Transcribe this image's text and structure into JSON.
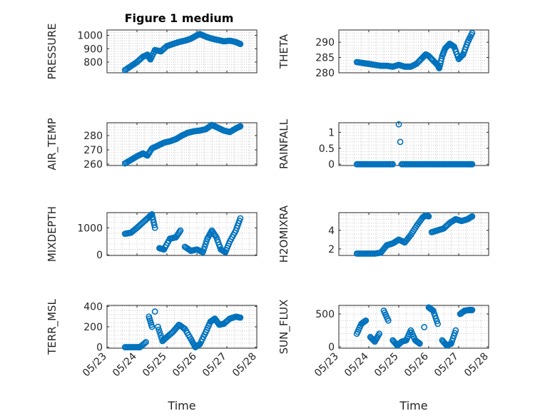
{
  "figure": {
    "title": "Figure 1 medium"
  },
  "chart_data": [
    {
      "type": "scatter",
      "ylabel": "PRESSURE",
      "xlabel": "",
      "yticks": [
        "800",
        "900",
        "1000"
      ],
      "ytick_values": [
        800,
        900,
        1000
      ],
      "ylim": [
        720,
        1040
      ],
      "grid": true,
      "x": [
        23.6,
        23.8,
        24.0,
        24.2,
        24.35,
        24.45,
        24.6,
        24.8,
        25.0,
        25.2,
        25.4,
        25.6,
        25.8,
        26.0,
        26.1,
        26.3,
        26.5,
        26.7,
        26.9,
        27.1,
        27.3,
        27.45
      ],
      "values": [
        740,
        770,
        800,
        840,
        855,
        820,
        890,
        880,
        920,
        935,
        950,
        960,
        975,
        1000,
        1010,
        990,
        975,
        965,
        955,
        960,
        950,
        935
      ]
    },
    {
      "type": "scatter",
      "ylabel": "THETA",
      "xlabel": "",
      "yticks": [
        "280",
        "285",
        "290"
      ],
      "ytick_values": [
        280,
        285,
        290
      ],
      "ylim": [
        280,
        294
      ],
      "grid": true,
      "x": [
        23.6,
        23.8,
        24.0,
        24.2,
        24.4,
        24.6,
        24.8,
        25.0,
        25.2,
        25.4,
        25.6,
        25.8,
        25.9,
        26.0,
        26.2,
        26.3,
        26.35,
        26.45,
        26.55,
        26.7,
        26.85,
        27.0,
        27.15,
        27.3,
        27.45
      ],
      "values": [
        283.5,
        283.2,
        282.9,
        282.6,
        282.3,
        282.3,
        282.0,
        282.6,
        282.0,
        282.0,
        283.0,
        285.0,
        286.0,
        285.5,
        283.5,
        282.5,
        281.5,
        285.5,
        288.0,
        289.5,
        288.5,
        284.5,
        286.0,
        290.0,
        293.0
      ]
    },
    {
      "type": "scatter",
      "ylabel": "AIR_TEMP",
      "xlabel": "",
      "yticks": [
        "260",
        "270",
        "280"
      ],
      "ytick_values": [
        260,
        270,
        280
      ],
      "ylim": [
        259,
        289
      ],
      "grid": true,
      "x": [
        23.6,
        23.8,
        24.0,
        24.2,
        24.35,
        24.5,
        24.7,
        24.9,
        25.1,
        25.3,
        25.5,
        25.7,
        25.9,
        26.1,
        26.3,
        26.5,
        26.7,
        26.9,
        27.1,
        27.3,
        27.45
      ],
      "values": [
        260.5,
        263.0,
        265.5,
        267.5,
        266.0,
        271.0,
        273.0,
        275.0,
        276.0,
        277.5,
        280.0,
        282.0,
        283.0,
        283.5,
        284.5,
        287.5,
        285.5,
        283.5,
        282.5,
        285.0,
        286.5
      ]
    },
    {
      "type": "scatter",
      "ylabel": "RAINFALL",
      "xlabel": "",
      "yticks": [
        "0",
        "0.5",
        "1"
      ],
      "ytick_values": [
        0,
        0.5,
        1
      ],
      "ylim": [
        -0.04,
        1.3
      ],
      "grid": true,
      "x": [
        23.6,
        23.8,
        24.0,
        24.2,
        24.4,
        24.6,
        24.8,
        25.0,
        25.05,
        25.1,
        25.3,
        25.5,
        25.7,
        25.9,
        26.1,
        26.3,
        26.5,
        26.7,
        26.9,
        27.1,
        27.3,
        27.45
      ],
      "values": [
        0,
        0,
        0,
        0,
        0,
        0,
        0,
        1.25,
        0.7,
        0,
        0,
        0,
        0,
        0,
        0,
        0,
        0,
        0,
        0,
        0,
        0,
        0
      ]
    },
    {
      "type": "scatter",
      "ylabel": "MIXDEPTH",
      "xlabel": "",
      "yticks": [
        "0",
        "1000"
      ],
      "ytick_values": [
        0,
        1000
      ],
      "ylim": [
        -20,
        1560
      ],
      "grid": true,
      "x": [
        23.6,
        23.8,
        24.0,
        24.2,
        24.4,
        24.5,
        24.6,
        24.75,
        24.9,
        25.1,
        25.3,
        25.45,
        25.6,
        25.8,
        26.0,
        26.2,
        26.35,
        26.5,
        26.65,
        26.8,
        26.95,
        27.1,
        27.3,
        27.45
      ],
      "values": [
        780,
        820,
        1000,
        1200,
        1400,
        1500,
        1000,
        250,
        200,
        600,
        650,
        900,
        300,
        150,
        200,
        100,
        600,
        900,
        650,
        200,
        100,
        500,
        900,
        1350
      ]
    },
    {
      "type": "scatter",
      "ylabel": "H2OMIXRA",
      "xlabel": "",
      "yticks": [
        "2",
        "4"
      ],
      "ytick_values": [
        2,
        4
      ],
      "ylim": [
        1.3,
        5.9
      ],
      "grid": true,
      "x": [
        23.6,
        23.8,
        24.0,
        24.2,
        24.4,
        24.6,
        24.8,
        25.0,
        25.2,
        25.4,
        25.6,
        25.8,
        25.9,
        26.0,
        26.1,
        26.3,
        26.5,
        26.7,
        26.9,
        27.1,
        27.3,
        27.45
      ],
      "values": [
        1.5,
        1.5,
        1.5,
        1.5,
        1.6,
        2.4,
        2.6,
        3.0,
        2.7,
        3.5,
        4.5,
        5.4,
        5.6,
        5.5,
        3.8,
        4.0,
        4.2,
        4.8,
        5.2,
        5.0,
        5.2,
        5.5
      ]
    },
    {
      "type": "scatter",
      "ylabel": "TERR_MSL",
      "xlabel": "Time",
      "yticks": [
        "0",
        "200",
        "400"
      ],
      "ytick_values": [
        0,
        200,
        400
      ],
      "ylim": [
        -10,
        410
      ],
      "grid": true,
      "xticks": [
        "05/23",
        "05/24",
        "05/25",
        "05/26",
        "05/27",
        "05/28"
      ],
      "xtick_values": [
        23,
        24,
        25,
        26,
        27,
        28
      ],
      "xlim": [
        23,
        28
      ],
      "x": [
        23.6,
        23.8,
        24.0,
        24.1,
        24.3,
        24.4,
        24.5,
        24.6,
        24.7,
        24.85,
        25.0,
        25.2,
        25.4,
        25.6,
        25.8,
        25.95,
        26.1,
        26.3,
        26.45,
        26.6,
        26.75,
        26.9,
        27.1,
        27.3,
        27.45
      ],
      "values": [
        0,
        0,
        0,
        0,
        50,
        300,
        200,
        350,
        200,
        60,
        100,
        150,
        220,
        180,
        80,
        0,
        30,
        150,
        250,
        280,
        220,
        230,
        280,
        300,
        290
      ]
    },
    {
      "type": "scatter",
      "ylabel": "SUN_FLUX",
      "xlabel": "Time",
      "yticks": [
        "0",
        "500"
      ],
      "ytick_values": [
        0,
        500
      ],
      "ylim": [
        -20,
        630
      ],
      "grid": true,
      "xticks": [
        "05/23",
        "05/24",
        "05/25",
        "05/26",
        "05/27",
        "05/28"
      ],
      "xtick_values": [
        23,
        24,
        25,
        26,
        27,
        28
      ],
      "xlim": [
        23,
        28
      ],
      "x": [
        23.6,
        23.75,
        23.9,
        24.05,
        24.2,
        24.35,
        24.5,
        24.65,
        24.8,
        24.95,
        25.1,
        25.25,
        25.4,
        25.55,
        25.7,
        25.85,
        26.0,
        26.15,
        26.3,
        26.45,
        26.6,
        26.75,
        26.9,
        27.05,
        27.2,
        27.35,
        27.45
      ],
      "values": [
        200,
        350,
        400,
        150,
        80,
        200,
        550,
        400,
        100,
        20,
        80,
        100,
        250,
        100,
        50,
        300,
        600,
        550,
        350,
        100,
        20,
        50,
        250,
        500,
        550,
        560,
        560
      ]
    }
  ]
}
